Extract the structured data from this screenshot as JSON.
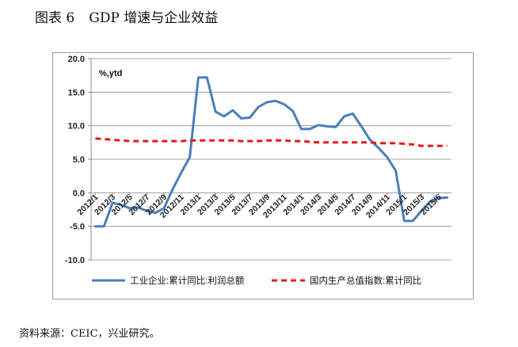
{
  "figure": {
    "label": "图表 6",
    "title": "GDP 增速与企业效益"
  },
  "source_note": "资料来源：CEIC，兴业研究。",
  "chart_data": {
    "type": "line",
    "unit_label": "%,ytd",
    "ylim": [
      -10,
      20
    ],
    "yticks": [
      20.0,
      15.0,
      10.0,
      5.0,
      0.0,
      -5.0,
      -10.0
    ],
    "ytick_labels": [
      "20.0",
      "15.0",
      "10.0",
      "5.0",
      "0.0",
      "-5.0",
      "-10.0"
    ],
    "x": [
      "2012/1",
      "2012/2",
      "2012/3",
      "2012/4",
      "2012/5",
      "2012/6",
      "2012/7",
      "2012/8",
      "2012/9",
      "2012/10",
      "2012/11",
      "2012/12",
      "2013/1",
      "2013/2",
      "2013/3",
      "2013/4",
      "2013/5",
      "2013/6",
      "2013/7",
      "2013/8",
      "2013/9",
      "2013/10",
      "2013/11",
      "2013/12",
      "2014/1",
      "2014/2",
      "2014/3",
      "2014/4",
      "2014/5",
      "2014/6",
      "2014/7",
      "2014/8",
      "2014/9",
      "2014/10",
      "2014/11",
      "2014/12",
      "2015/1",
      "2015/2",
      "2015/3",
      "2015/4",
      "2015/5",
      "2015/6"
    ],
    "xtick_labels": [
      "2012/1",
      "2012/3",
      "2012/5",
      "2012/7",
      "2012/9",
      "2012/11",
      "2013/1",
      "2013/3",
      "2013/5",
      "2013/7",
      "2013/9",
      "2013/11",
      "2014/1",
      "2014/3",
      "2014/5",
      "2014/7",
      "2014/9",
      "2014/11",
      "2015/1",
      "2015/3",
      "2015/5"
    ],
    "grid": "horizontal",
    "legend_position": "bottom",
    "series": [
      {
        "name": "工业企业:累计同比:利润总额",
        "color": "#4a7ebb",
        "dash": "solid",
        "values": [
          -5.0,
          -5.0,
          -1.5,
          -1.8,
          -2.3,
          -2.2,
          -2.7,
          -3.0,
          -2.3,
          0.5,
          3.0,
          5.3,
          17.2,
          17.2,
          12.1,
          11.4,
          12.3,
          11.1,
          11.2,
          12.8,
          13.5,
          13.7,
          13.2,
          12.2,
          9.5,
          9.5,
          10.1,
          9.9,
          9.8,
          11.4,
          11.8,
          9.9,
          7.9,
          6.7,
          5.3,
          3.3,
          -4.2,
          -4.2,
          -2.7,
          -1.3,
          -0.8,
          -0.7
        ]
      },
      {
        "name": "国内生产总值指数:累计同比",
        "color": "#e41a1c",
        "dash": "dashed",
        "values": [
          8.1,
          8.0,
          7.9,
          7.8,
          7.7,
          7.7,
          7.7,
          7.7,
          7.7,
          7.7,
          7.7,
          7.8,
          7.8,
          7.8,
          7.8,
          7.8,
          7.8,
          7.7,
          7.7,
          7.7,
          7.8,
          7.8,
          7.8,
          7.7,
          7.7,
          7.6,
          7.5,
          7.5,
          7.5,
          7.5,
          7.5,
          7.5,
          7.5,
          7.4,
          7.4,
          7.4,
          7.3,
          7.2,
          7.0,
          7.0,
          7.0,
          7.0
        ]
      }
    ]
  }
}
